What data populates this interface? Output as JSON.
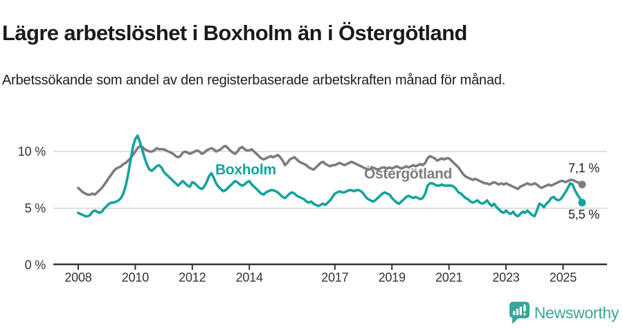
{
  "chart_data": {
    "type": "line",
    "title": "Lägre arbetslöshet i Boxholm än i Östergötland",
    "subtitle": "Arbetssökande som andel av den registerbaserade arbetskraften månad för månad.",
    "unit": "%",
    "x_interval": "monthly",
    "x_start": "2008-01",
    "x_end": "2025-09",
    "x_tick_labels": [
      "2008",
      "2010",
      "2012",
      "2014",
      "2017",
      "2019",
      "2021",
      "2023",
      "2025"
    ],
    "y_ticks": [
      {
        "value": 0,
        "label": "0 %"
      },
      {
        "value": 5,
        "label": "5 %"
      },
      {
        "value": 10,
        "label": "10 %"
      }
    ],
    "ylim": [
      0,
      12.2
    ],
    "grid": "horizontal-only",
    "legend_position": "inline-labels-on-lines",
    "axis_color": "#333333",
    "gridline_color": "#cccccc",
    "series": [
      {
        "name": "Boxholm",
        "color": "#12a39a",
        "end_value": 5.5,
        "end_label": "5,5 %",
        "values": [
          4.6,
          4.5,
          4.4,
          4.3,
          4.3,
          4.4,
          4.7,
          4.8,
          4.7,
          4.6,
          4.7,
          5.0,
          5.2,
          5.4,
          5.5,
          5.5,
          5.6,
          5.7,
          5.9,
          6.3,
          7.0,
          8.0,
          9.2,
          10.4,
          11.1,
          11.4,
          10.8,
          10.1,
          9.4,
          8.8,
          8.4,
          8.3,
          8.5,
          8.7,
          8.8,
          8.6,
          8.2,
          8.0,
          7.8,
          7.6,
          7.4,
          7.2,
          7.0,
          7.2,
          7.4,
          7.2,
          7.0,
          6.9,
          7.3,
          7.2,
          7.0,
          6.8,
          6.7,
          6.9,
          7.3,
          7.8,
          8.1,
          7.7,
          7.2,
          6.9,
          6.7,
          6.5,
          6.6,
          6.8,
          7.0,
          7.2,
          7.4,
          7.3,
          7.1,
          7.0,
          7.1,
          7.3,
          7.4,
          7.1,
          6.9,
          6.7,
          6.5,
          6.3,
          6.2,
          6.4,
          6.5,
          6.6,
          6.6,
          6.5,
          6.4,
          6.2,
          6.0,
          5.9,
          6.1,
          6.3,
          6.4,
          6.3,
          6.1,
          6.0,
          5.9,
          5.8,
          5.6,
          5.5,
          5.6,
          5.4,
          5.3,
          5.2,
          5.3,
          5.4,
          5.3,
          5.5,
          5.7,
          6.0,
          6.3,
          6.4,
          6.5,
          6.4,
          6.4,
          6.5,
          6.6,
          6.6,
          6.5,
          6.6,
          6.6,
          6.5,
          6.3,
          6.0,
          5.8,
          5.7,
          5.6,
          5.7,
          5.9,
          6.1,
          6.3,
          6.4,
          6.3,
          6.2,
          5.9,
          5.7,
          5.5,
          5.4,
          5.6,
          5.8,
          6.0,
          6.1,
          6.0,
          5.9,
          6.0,
          5.9,
          5.8,
          5.9,
          6.3,
          7.0,
          7.2,
          7.2,
          7.1,
          7.0,
          7.0,
          7.1,
          7.0,
          7.0,
          7.0,
          7.0,
          6.9,
          6.7,
          6.4,
          6.3,
          6.1,
          5.9,
          5.8,
          5.6,
          5.5,
          5.6,
          5.7,
          5.5,
          5.4,
          5.5,
          5.7,
          5.4,
          5.2,
          5.4,
          5.1,
          4.9,
          4.7,
          4.6,
          4.8,
          4.6,
          4.5,
          4.7,
          4.4,
          4.3,
          4.5,
          4.7,
          4.6,
          4.8,
          4.6,
          4.4,
          4.3,
          4.8,
          5.4,
          5.3,
          5.1,
          5.4,
          5.6,
          5.9,
          6.0,
          5.8,
          5.7,
          5.8,
          6.1,
          6.4,
          6.8,
          7.2,
          7.1,
          6.6,
          6.2,
          5.9,
          5.5
        ]
      },
      {
        "name": "Östergötland",
        "color": "#7c7c80",
        "end_value": 7.1,
        "end_label": "7,1 %",
        "values": [
          6.8,
          6.6,
          6.4,
          6.3,
          6.2,
          6.2,
          6.3,
          6.2,
          6.4,
          6.6,
          6.8,
          7.1,
          7.4,
          7.7,
          8.0,
          8.3,
          8.5,
          8.6,
          8.7,
          8.9,
          9.0,
          9.2,
          9.4,
          9.7,
          10.0,
          10.3,
          10.5,
          10.4,
          10.2,
          10.1,
          10.0,
          10.0,
          10.1,
          10.3,
          10.2,
          10.2,
          10.2,
          10.1,
          10.0,
          9.9,
          9.8,
          9.6,
          9.5,
          9.6,
          9.9,
          10.0,
          9.9,
          9.8,
          9.9,
          10.0,
          10.1,
          10.0,
          9.8,
          9.9,
          10.1,
          10.2,
          10.3,
          10.2,
          10.0,
          10.1,
          10.2,
          10.4,
          10.5,
          10.3,
          10.1,
          9.9,
          9.8,
          10.0,
          10.3,
          10.4,
          10.2,
          10.1,
          10.1,
          10.2,
          10.0,
          9.8,
          9.6,
          9.4,
          9.3,
          9.4,
          9.5,
          9.6,
          9.5,
          9.6,
          9.7,
          9.5,
          9.2,
          8.8,
          9.0,
          9.3,
          9.4,
          9.5,
          9.3,
          9.1,
          9.0,
          8.9,
          8.8,
          8.6,
          8.5,
          8.4,
          8.6,
          8.8,
          9.0,
          9.1,
          8.9,
          8.8,
          8.7,
          8.8,
          8.8,
          8.9,
          9.0,
          8.9,
          8.8,
          8.9,
          9.0,
          9.1,
          9.0,
          8.9,
          8.8,
          8.7,
          8.6,
          8.5,
          8.4,
          8.5,
          8.6,
          8.5,
          8.4,
          8.5,
          8.6,
          8.6,
          8.5,
          8.6,
          8.5,
          8.6,
          8.7,
          8.6,
          8.5,
          8.6,
          8.7,
          8.6,
          8.7,
          8.8,
          8.7,
          8.8,
          8.9,
          8.8,
          9.0,
          9.4,
          9.6,
          9.5,
          9.4,
          9.2,
          9.3,
          9.4,
          9.3,
          9.4,
          9.4,
          9.2,
          9.0,
          8.8,
          8.6,
          8.3,
          8.0,
          7.8,
          7.7,
          7.6,
          7.5,
          7.6,
          7.5,
          7.4,
          7.3,
          7.2,
          7.2,
          7.1,
          7.2,
          7.3,
          7.2,
          7.1,
          7.2,
          7.1,
          7.2,
          7.1,
          7.0,
          6.9,
          6.8,
          6.7,
          6.9,
          7.0,
          7.1,
          7.2,
          7.1,
          7.1,
          7.2,
          7.1,
          6.9,
          6.8,
          6.9,
          7.0,
          7.1,
          7.0,
          7.1,
          7.2,
          7.3,
          7.4,
          7.4,
          7.3,
          7.4,
          7.5,
          7.5,
          7.4,
          7.3,
          7.2,
          7.1
        ]
      }
    ]
  },
  "branding": {
    "wordmark": "Newsworthy",
    "color": "#3ba49b",
    "icon": "newsworthy-speech-bubble-chart-icon"
  }
}
